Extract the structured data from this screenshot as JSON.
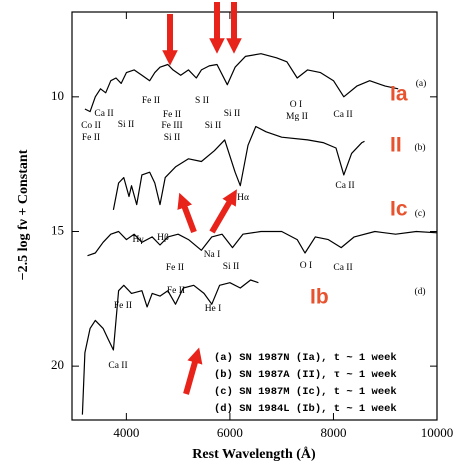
{
  "chart_data": {
    "type": "line",
    "x_label": "Rest Wavelength (Å)",
    "y_label": "−2.5 log fν + Constant",
    "xlim": [
      2950,
      10000
    ],
    "xticks": [
      4000,
      6000,
      8000,
      10000
    ],
    "ylim": [
      6.85,
      22
    ],
    "yticks": [
      10,
      15,
      20
    ],
    "y_inverted": true,
    "series": [
      {
        "name": "(a) SN 1987N (Ia), t ~ 1 week",
        "color": "#000000",
        "x": [
          3200,
          3300,
          3400,
          3500,
          3600,
          3700,
          3800,
          3900,
          4000,
          4150,
          4300,
          4450,
          4550,
          4650,
          4800,
          4900,
          5050,
          5200,
          5350,
          5450,
          5600,
          5750,
          5950,
          6100,
          6300,
          6600,
          6900,
          7100,
          7300,
          7500,
          7750,
          8000,
          8200,
          8450,
          8700,
          9000,
          9250
        ],
        "values": [
          10.45,
          10.55,
          10.0,
          9.7,
          9.85,
          9.4,
          9.3,
          9.5,
          9.1,
          9.0,
          9.2,
          9.4,
          9.1,
          8.9,
          8.8,
          9.0,
          9.2,
          9.0,
          9.3,
          9.0,
          8.85,
          8.8,
          9.55,
          8.9,
          8.5,
          8.4,
          8.55,
          8.7,
          9.3,
          9.0,
          9.1,
          9.4,
          10.0,
          9.6,
          9.4,
          9.6,
          9.7
        ]
      },
      {
        "name": "(b) SN 1987A (II), τ ~ 1 week",
        "color": "#000000",
        "x": [
          3750,
          3850,
          3950,
          4050,
          4100,
          4200,
          4300,
          4450,
          4550,
          4650,
          4750,
          4950,
          5200,
          5450,
          5700,
          5900,
          6100,
          6200,
          6350,
          6500,
          6700,
          7000,
          7500,
          7800,
          8050,
          8200,
          8350,
          8550,
          8600
        ],
        "values": [
          14.2,
          13.2,
          13.0,
          13.7,
          13.3,
          14.0,
          12.9,
          12.8,
          13.2,
          14.0,
          13.0,
          12.6,
          12.3,
          12.4,
          12.0,
          11.6,
          12.8,
          13.3,
          11.8,
          11.1,
          11.3,
          11.5,
          11.6,
          11.7,
          11.9,
          12.9,
          12.1,
          11.7,
          11.65
        ]
      },
      {
        "name": "(c) SN 1987M (Ic), t ~ 1 week",
        "color": "#000000",
        "x": [
          3250,
          3400,
          3550,
          3700,
          3850,
          4000,
          4150,
          4300,
          4500,
          4650,
          4800,
          5000,
          5200,
          5450,
          5650,
          5850,
          6050,
          6250,
          6600,
          7000,
          7300,
          7450,
          7650,
          7900,
          8150,
          8400,
          8800,
          9200,
          9600,
          10000
        ],
        "values": [
          15.9,
          15.8,
          15.4,
          15.1,
          15.0,
          15.3,
          15.1,
          15.4,
          15.2,
          15.5,
          15.2,
          15.1,
          15.3,
          15.7,
          15.2,
          15.1,
          15.6,
          15.1,
          15.0,
          15.0,
          15.3,
          15.8,
          15.2,
          15.3,
          15.6,
          15.2,
          15.0,
          15.1,
          15.0,
          15.05
        ]
      },
      {
        "name": "(d) SN 1984L (Ib), t ~ 1 week",
        "color": "#000000",
        "x": [
          3150,
          3200,
          3300,
          3400,
          3550,
          3650,
          3750,
          3850,
          3950,
          4100,
          4300,
          4400,
          4500,
          4650,
          4800,
          4950,
          5100,
          5300,
          5500,
          5650,
          5800,
          6000,
          6200,
          6400,
          6550
        ],
        "values": [
          21.8,
          19.5,
          18.6,
          18.3,
          18.6,
          19.0,
          19.4,
          17.2,
          17.0,
          17.3,
          17.2,
          17.8,
          17.3,
          17.4,
          17.2,
          17.7,
          17.1,
          17.0,
          17.3,
          17.7,
          17.0,
          16.9,
          17.1,
          16.8,
          16.9
        ]
      }
    ],
    "annotations": [
      "Co II",
      "Fe II",
      "Ca II",
      "Si II",
      "Fe II",
      "Fe II",
      "Fe III",
      "Si II",
      "S II",
      "Si II",
      "Si II",
      "O I",
      "Mg II",
      "Ca II",
      "(a)",
      "Hγ",
      "Hβ",
      "Hα",
      "Ca II",
      "(b)",
      "Fe II",
      "Na I",
      "Si II",
      "O I",
      "Ca II",
      "(c)",
      "Fe II",
      "Fe II",
      "He I",
      "Ca II",
      "(d)",
      "Ia",
      "II",
      "Ic",
      "Ib"
    ]
  }
}
